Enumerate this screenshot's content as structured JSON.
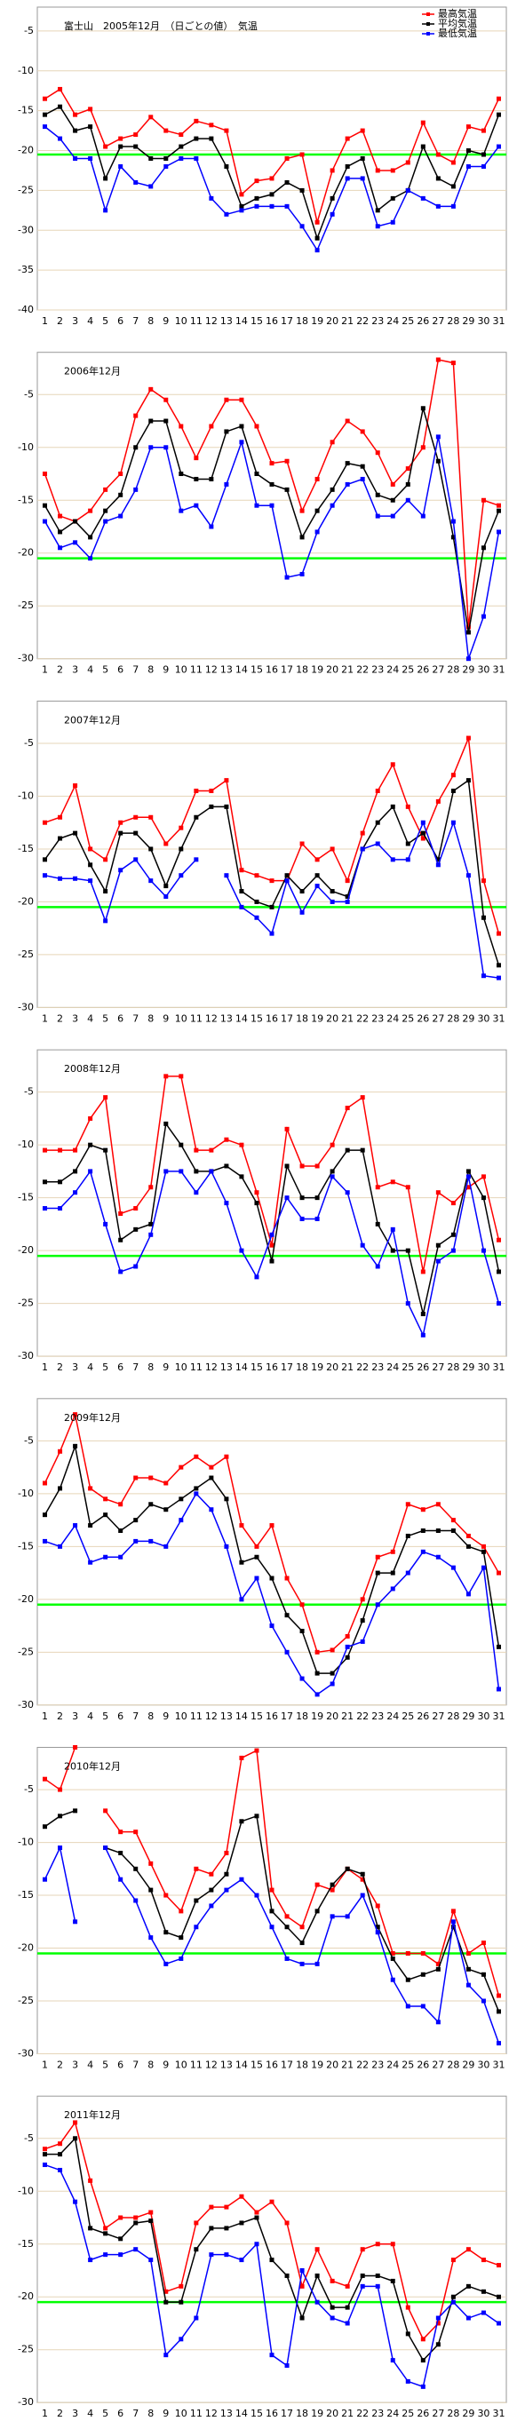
{
  "chart_data": [
    {
      "type": "line",
      "title": "富士山　2005年12月　（日ごとの値）　気温",
      "categories": [
        1,
        2,
        3,
        4,
        5,
        6,
        7,
        8,
        9,
        10,
        11,
        12,
        13,
        14,
        15,
        16,
        17,
        18,
        19,
        20,
        21,
        22,
        23,
        24,
        25,
        26,
        27,
        28,
        29,
        30,
        31
      ],
      "ylim": [
        -40,
        -2
      ],
      "yticks": [
        -5,
        -10,
        -15,
        -20,
        -25,
        -30,
        -35,
        -40
      ],
      "reference_line": -20.5,
      "grid": true,
      "legend": "top-right",
      "series": [
        {
          "name": "最高気温",
          "color": "#ff0000",
          "values": [
            -13.5,
            -12.3,
            -15.5,
            -14.8,
            -19.5,
            -18.5,
            -18,
            -15.8,
            -17.5,
            -18,
            -16.3,
            -16.8,
            -17.5,
            -25.5,
            -23.8,
            -23.5,
            -21,
            -20.5,
            -29,
            -22.5,
            -18.5,
            -17.5,
            -22.5,
            -22.5,
            -21.5,
            -16.5,
            -20.5,
            -21.5,
            -17,
            -17.5,
            -13.5
          ]
        },
        {
          "name": "平均気温",
          "color": "#000000",
          "values": [
            -15.5,
            -14.5,
            -17.5,
            -17,
            -23.5,
            -19.5,
            -19.5,
            -21,
            -21,
            -19.5,
            -18.5,
            -18.5,
            -22,
            -27,
            -26,
            -25.5,
            -24,
            -25,
            -31,
            -26,
            -22,
            -21,
            -27.5,
            -26,
            -25,
            -19.5,
            -23.5,
            -24.5,
            -20,
            -20.5,
            -15.5
          ]
        },
        {
          "name": "最低気温",
          "color": "#0000ff",
          "values": [
            -17,
            -18.5,
            -21,
            -21,
            -27.5,
            -22,
            -24,
            -24.5,
            -22,
            -21,
            -21,
            -26,
            -28,
            -27.5,
            -27,
            -27,
            -27,
            -29.5,
            -32.5,
            -28,
            -23.5,
            -23.5,
            -29.5,
            -29,
            -25,
            -26,
            -27,
            -27,
            -22,
            -22,
            -19.5
          ]
        }
      ]
    },
    {
      "type": "line",
      "title": "2006年12月",
      "categories": [
        1,
        2,
        3,
        4,
        5,
        6,
        7,
        8,
        9,
        10,
        11,
        12,
        13,
        14,
        15,
        16,
        17,
        18,
        19,
        20,
        21,
        22,
        23,
        24,
        25,
        26,
        27,
        28,
        29,
        30,
        31
      ],
      "ylim": [
        -30,
        -1
      ],
      "yticks": [
        -5,
        -10,
        -15,
        -20,
        -25,
        -30
      ],
      "reference_line": -20.5,
      "grid": true,
      "series": [
        {
          "color": "#ff0000",
          "values": [
            -12.5,
            -16.5,
            -17,
            -16,
            -14,
            -12.5,
            -7,
            -4.5,
            -5.5,
            -8,
            -11,
            -8,
            -5.5,
            -5.5,
            -8,
            -11.5,
            -11.3,
            -16,
            -13,
            -9.5,
            -7.5,
            -8.5,
            -10.5,
            -13.5,
            -12,
            -10,
            -1.7,
            -2,
            -27,
            -15,
            -15.5
          ]
        },
        {
          "color": "#000000",
          "values": [
            -15.5,
            -18,
            -17,
            -18.5,
            -16,
            -14.5,
            -10,
            -7.5,
            -7.5,
            -12.5,
            -13,
            -13,
            -8.5,
            -8,
            -12.5,
            -13.5,
            -14,
            -18.5,
            -16,
            -14,
            -11.5,
            -11.8,
            -14.5,
            -15,
            -13.5,
            -6.3,
            -11.3,
            -18.5,
            -27.5,
            -19.5,
            -16
          ]
        },
        {
          "color": "#0000ff",
          "values": [
            -17,
            -19.5,
            -19,
            -20.5,
            -17,
            -16.5,
            -14,
            -10,
            -10,
            -16,
            -15.5,
            -17.5,
            -13.5,
            -9.5,
            -15.5,
            -15.5,
            -22.3,
            -22,
            -18,
            -15.5,
            -13.5,
            -13,
            -16.5,
            -16.5,
            -15,
            -16.5,
            -9,
            -17,
            -30,
            -26,
            -18
          ]
        }
      ]
    },
    {
      "type": "line",
      "title": "2007年12月",
      "categories": [
        1,
        2,
        3,
        4,
        5,
        6,
        7,
        8,
        9,
        10,
        11,
        12,
        13,
        14,
        15,
        16,
        17,
        18,
        19,
        20,
        21,
        22,
        23,
        24,
        25,
        26,
        27,
        28,
        29,
        30,
        31
      ],
      "ylim": [
        -30,
        -1
      ],
      "yticks": [
        -5,
        -10,
        -15,
        -20,
        -25,
        -30
      ],
      "reference_line": -20.5,
      "grid": true,
      "series": [
        {
          "color": "#ff0000",
          "values": [
            -12.5,
            -12,
            -9,
            -15,
            -16,
            -12.5,
            -12,
            -12,
            -14.5,
            -13,
            -9.5,
            -9.5,
            -8.5,
            -17,
            -17.5,
            -18,
            -18,
            -14.5,
            -16,
            -15,
            -18,
            -13.5,
            -9.5,
            -7,
            -11,
            -14,
            -10.5,
            -8,
            -4.5,
            -18,
            -23
          ]
        },
        {
          "color": "#000000",
          "values": [
            -16,
            -14,
            -13.5,
            -16.5,
            -19,
            -13.5,
            -13.5,
            -15,
            -18.5,
            -15,
            -12,
            -11,
            -11,
            -19,
            -20,
            -20.5,
            -17.5,
            -19,
            -17.5,
            -19,
            -19.5,
            -15,
            -12.5,
            -11,
            -14.5,
            -13.5,
            -16,
            -9.5,
            -8.5,
            -21.5,
            -26
          ]
        },
        {
          "color": "#0000ff",
          "values": [
            -17.5,
            -17.8,
            -17.8,
            -18,
            -21.8,
            -17,
            -16,
            -18,
            -19.5,
            -17.5,
            -16,
            null,
            -17.5,
            -20.5,
            -21.5,
            -23,
            -18,
            -21,
            -18.5,
            -20,
            -20,
            -15,
            -14.5,
            -16,
            -16,
            -12.5,
            -16.5,
            -12.5,
            -17.5,
            -27,
            -27.2
          ]
        }
      ]
    },
    {
      "type": "line",
      "title": "2008年12月",
      "categories": [
        1,
        2,
        3,
        4,
        5,
        6,
        7,
        8,
        9,
        10,
        11,
        12,
        13,
        14,
        15,
        16,
        17,
        18,
        19,
        20,
        21,
        22,
        23,
        24,
        25,
        26,
        27,
        28,
        29,
        30,
        31
      ],
      "ylim": [
        -30,
        -1
      ],
      "yticks": [
        -5,
        -10,
        -15,
        -20,
        -25,
        -30
      ],
      "reference_line": -20.5,
      "grid": true,
      "series": [
        {
          "color": "#ff0000",
          "values": [
            -10.5,
            -10.5,
            -10.5,
            -7.5,
            -5.5,
            -16.5,
            -16,
            -14,
            -3.5,
            -3.5,
            -10.5,
            -10.5,
            -9.5,
            -10,
            -14.5,
            -19.5,
            -8.5,
            -12,
            -12,
            -10,
            -6.5,
            -5.5,
            -14,
            -13.5,
            -14,
            -22,
            -14.5,
            -15.5,
            -14,
            -13,
            -19
          ]
        },
        {
          "color": "#000000",
          "values": [
            -13.5,
            -13.5,
            -12.5,
            -10,
            -10.5,
            -19,
            -18,
            -17.5,
            -8,
            -10,
            -12.5,
            -12.5,
            -12,
            -13,
            -15.5,
            -21,
            -12,
            -15,
            -15,
            -12.5,
            -10.5,
            -10.5,
            -17.5,
            -20,
            -20,
            -26,
            -19.5,
            -18.5,
            -12.5,
            -15,
            -22
          ]
        },
        {
          "color": "#0000ff",
          "values": [
            -16,
            -16,
            -14.5,
            -12.5,
            -17.5,
            -22,
            -21.5,
            -18.5,
            -12.5,
            -12.5,
            -14.5,
            -12.5,
            -15.5,
            -20,
            -22.5,
            -18.5,
            -15,
            -17,
            -17,
            -13,
            -14.5,
            -19.5,
            -21.5,
            -18,
            -25,
            -28,
            -21,
            -20,
            -13,
            -20,
            -25
          ]
        }
      ]
    },
    {
      "type": "line",
      "title": "2009年12月",
      "categories": [
        1,
        2,
        3,
        4,
        5,
        6,
        7,
        8,
        9,
        10,
        11,
        12,
        13,
        14,
        15,
        16,
        17,
        18,
        19,
        20,
        21,
        22,
        23,
        24,
        25,
        26,
        27,
        28,
        29,
        30,
        31
      ],
      "ylim": [
        -30,
        -1
      ],
      "yticks": [
        -5,
        -10,
        -15,
        -20,
        -25,
        -30
      ],
      "reference_line": -20.5,
      "grid": true,
      "series": [
        {
          "color": "#ff0000",
          "values": [
            -9,
            -6,
            -2.5,
            -9.5,
            -10.5,
            -11,
            -8.5,
            -8.5,
            -9,
            -7.5,
            -6.5,
            -7.5,
            -6.5,
            -13,
            -15,
            -13,
            -18,
            -20.5,
            -25,
            -24.8,
            -23.5,
            -20,
            -16,
            -15.5,
            -11,
            -11.5,
            -11,
            -12.5,
            -14,
            -15,
            -17.5
          ]
        },
        {
          "color": "#000000",
          "values": [
            -12,
            -9.5,
            -5.5,
            -13,
            -12,
            -13.5,
            -12.5,
            -11,
            -11.5,
            -10.5,
            -9.5,
            -8.5,
            -10.5,
            -16.5,
            -16,
            -18,
            -21.5,
            -23,
            -27,
            -27,
            -25.5,
            -22,
            -17.5,
            -17.5,
            -14,
            -13.5,
            -13.5,
            -13.5,
            -15,
            -15.5,
            -24.5
          ]
        },
        {
          "color": "#0000ff",
          "values": [
            -14.5,
            -15,
            -13,
            -16.5,
            -16,
            -16,
            -14.5,
            -14.5,
            -15,
            -12.5,
            -10,
            -11.5,
            -15,
            -20,
            -18,
            -22.5,
            -25,
            -27.5,
            -29,
            -28,
            -24.5,
            -24,
            -20.5,
            -19,
            -17.5,
            -15.5,
            -16,
            -17,
            -19.5,
            -17,
            -28.5
          ]
        }
      ]
    },
    {
      "type": "line",
      "title": "2010年12月",
      "categories": [
        1,
        2,
        3,
        4,
        5,
        6,
        7,
        8,
        9,
        10,
        11,
        12,
        13,
        14,
        15,
        16,
        17,
        18,
        19,
        20,
        21,
        22,
        23,
        24,
        25,
        26,
        27,
        28,
        29,
        30,
        31
      ],
      "ylim": [
        -30,
        -1
      ],
      "yticks": [
        -5,
        -10,
        -15,
        -20,
        -25,
        -30
      ],
      "reference_line": -20.5,
      "grid": true,
      "series": [
        {
          "color": "#ff0000",
          "values": [
            -4,
            -5,
            -1,
            null,
            -7,
            -9,
            -9,
            -12,
            -15,
            -16.5,
            -12.5,
            -13,
            -11,
            -2,
            -1.3,
            -14.5,
            -17,
            -18,
            -14,
            -14.5,
            -12.5,
            -13.5,
            -16,
            -20.5,
            -20.5,
            -20.5,
            -21.5,
            -16.5,
            -20.5,
            -19.5,
            -24.5
          ]
        },
        {
          "color": "#000000",
          "values": [
            -8.5,
            -7.5,
            -7,
            null,
            -10.5,
            -11,
            -12.5,
            -14.5,
            -18.5,
            -19,
            -15.5,
            -14.5,
            -13,
            -8,
            -7.5,
            -16.5,
            -18,
            -19.5,
            -16.5,
            -14,
            -12.5,
            -13,
            -18,
            -21,
            -23,
            -22.5,
            -22,
            -18,
            -22,
            -22.5,
            -26
          ]
        },
        {
          "color": "#0000ff",
          "values": [
            -13.5,
            -10.5,
            -17.5,
            null,
            -10.5,
            -13.5,
            -15.5,
            -19,
            -21.5,
            -21,
            -18,
            -16,
            -14.5,
            -13.5,
            -15,
            -18,
            -21,
            -21.5,
            -21.5,
            -17,
            -17,
            -15,
            -18.5,
            -23,
            -25.5,
            -25.5,
            -27,
            -17.5,
            -23.5,
            -25,
            -29
          ]
        }
      ]
    },
    {
      "type": "line",
      "title": "2011年12月",
      "categories": [
        1,
        2,
        3,
        4,
        5,
        6,
        7,
        8,
        9,
        10,
        11,
        12,
        13,
        14,
        15,
        16,
        17,
        18,
        19,
        20,
        21,
        22,
        23,
        24,
        25,
        26,
        27,
        28,
        29,
        30,
        31
      ],
      "ylim": [
        -30,
        -1
      ],
      "yticks": [
        -5,
        -10,
        -15,
        -20,
        -25,
        -30
      ],
      "reference_line": -20.5,
      "grid": true,
      "series": [
        {
          "color": "#ff0000",
          "values": [
            -6,
            -5.5,
            -3.5,
            -9,
            -13.5,
            -12.5,
            -12.5,
            -12,
            -19.5,
            -19,
            -13,
            -11.5,
            -11.5,
            -10.5,
            -12,
            -11,
            -13,
            -19,
            -15.5,
            -18.5,
            -19,
            -15.5,
            -15,
            -15,
            -21,
            -24,
            -22.5,
            -16.5,
            -15.5,
            -16.5,
            -17
          ]
        },
        {
          "color": "#000000",
          "values": [
            -6.5,
            -6.5,
            -5,
            -13.5,
            -14,
            -14.5,
            -13,
            -12.8,
            -20.5,
            -20.5,
            -15.5,
            -13.5,
            -13.5,
            -13,
            -12.5,
            -16.5,
            -18,
            -22,
            -18,
            -21,
            -21,
            -18,
            -18,
            -18.5,
            -23.5,
            -26,
            -24.5,
            -20,
            -19,
            -19.5,
            -20
          ]
        },
        {
          "color": "#0000ff",
          "values": [
            -7.5,
            -8,
            -11,
            -16.5,
            -16,
            -16,
            -15.5,
            -16.5,
            -25.5,
            -24,
            -22,
            -16,
            -16,
            -16.5,
            -15,
            -25.5,
            -26.5,
            -17.5,
            -20.5,
            -22,
            -22.5,
            -19,
            -19,
            -26,
            -28,
            -28.5,
            -22,
            -20.5,
            -22,
            -21.5,
            -22.5
          ]
        }
      ]
    }
  ]
}
